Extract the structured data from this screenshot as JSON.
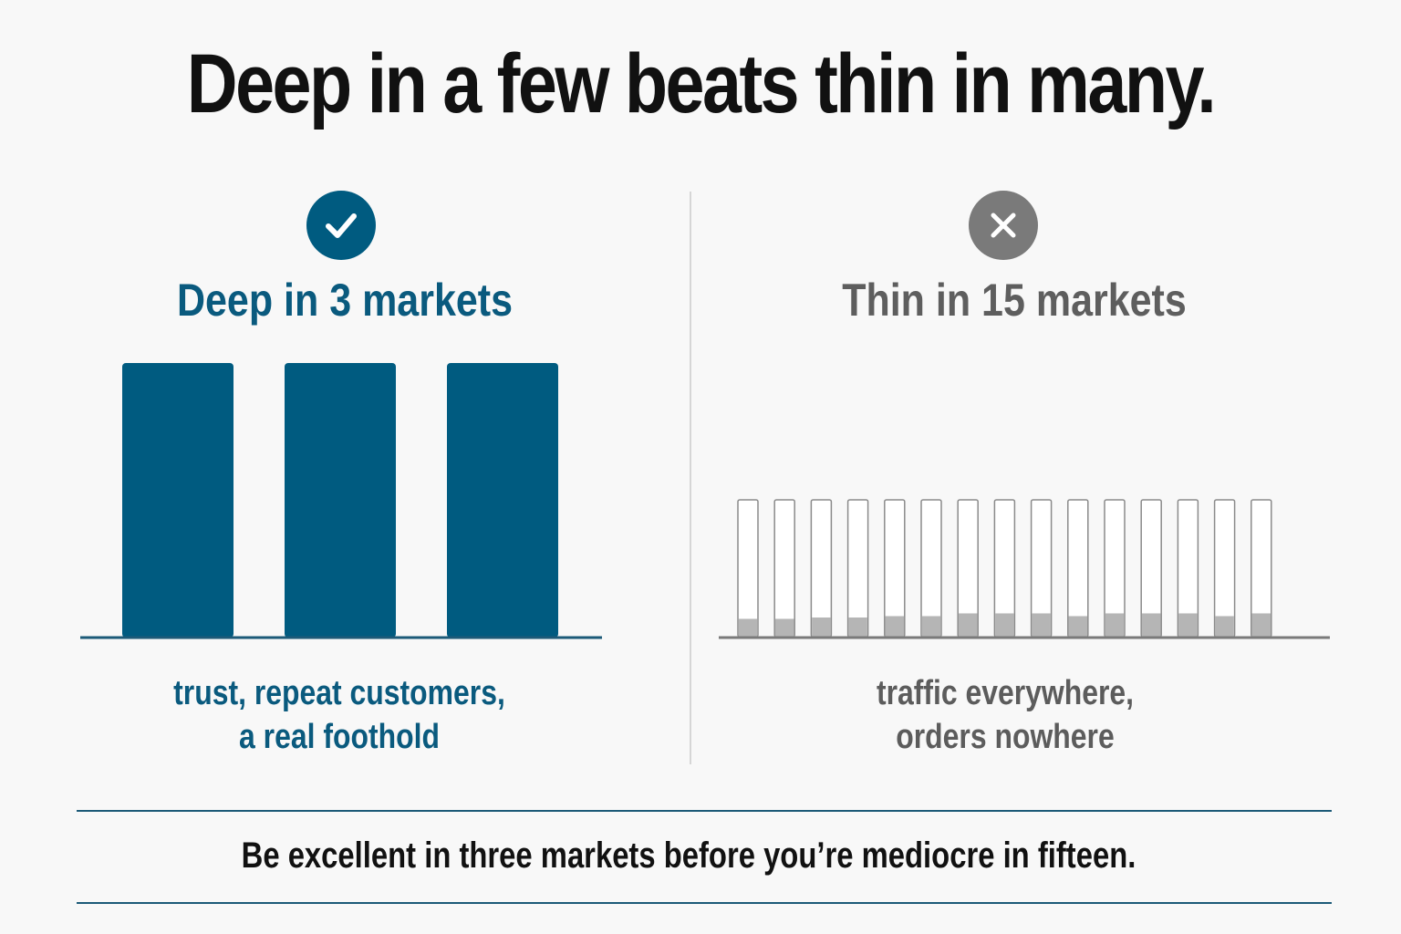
{
  "title": "Deep in a few beats thin in many.",
  "colors": {
    "accent": "#005b80",
    "muted": "#7a7a7a",
    "empty_fill": "#ffffff",
    "thin_fill": "#b5b5b5",
    "text": "#111111"
  },
  "left_panel": {
    "icon": "check-icon",
    "heading": "Deep in 3 markets",
    "caption_line1": "trust, repeat customers,",
    "caption_line2": "a real foothold"
  },
  "right_panel": {
    "icon": "x-icon",
    "heading": "Thin in 15 markets",
    "caption_line1": "traffic everywhere,",
    "caption_line2": "orders nowhere"
  },
  "footer": {
    "text": "Be excellent in three markets before you’re mediocre in fifteen."
  },
  "chart_data": [
    {
      "type": "bar",
      "categories": [
        "",
        "",
        ""
      ],
      "values": [
        1.0,
        1.0,
        1.0
      ],
      "ylim": [
        0,
        1
      ],
      "grid": false,
      "note_color": "#005b80"
    },
    {
      "type": "bar",
      "categories": [
        "",
        "",
        "",
        "",
        "",
        "",
        "",
        "",
        "",
        "",
        "",
        "",
        "",
        "",
        ""
      ],
      "capacity": [
        1,
        1,
        1,
        1,
        1,
        1,
        1,
        1,
        1,
        1,
        1,
        1,
        1,
        1,
        1
      ],
      "values": [
        0.13,
        0.13,
        0.14,
        0.14,
        0.15,
        0.15,
        0.17,
        0.17,
        0.17,
        0.15,
        0.17,
        0.17,
        0.17,
        0.15,
        0.17
      ],
      "ylim": [
        0,
        1
      ],
      "grid": false
    }
  ]
}
